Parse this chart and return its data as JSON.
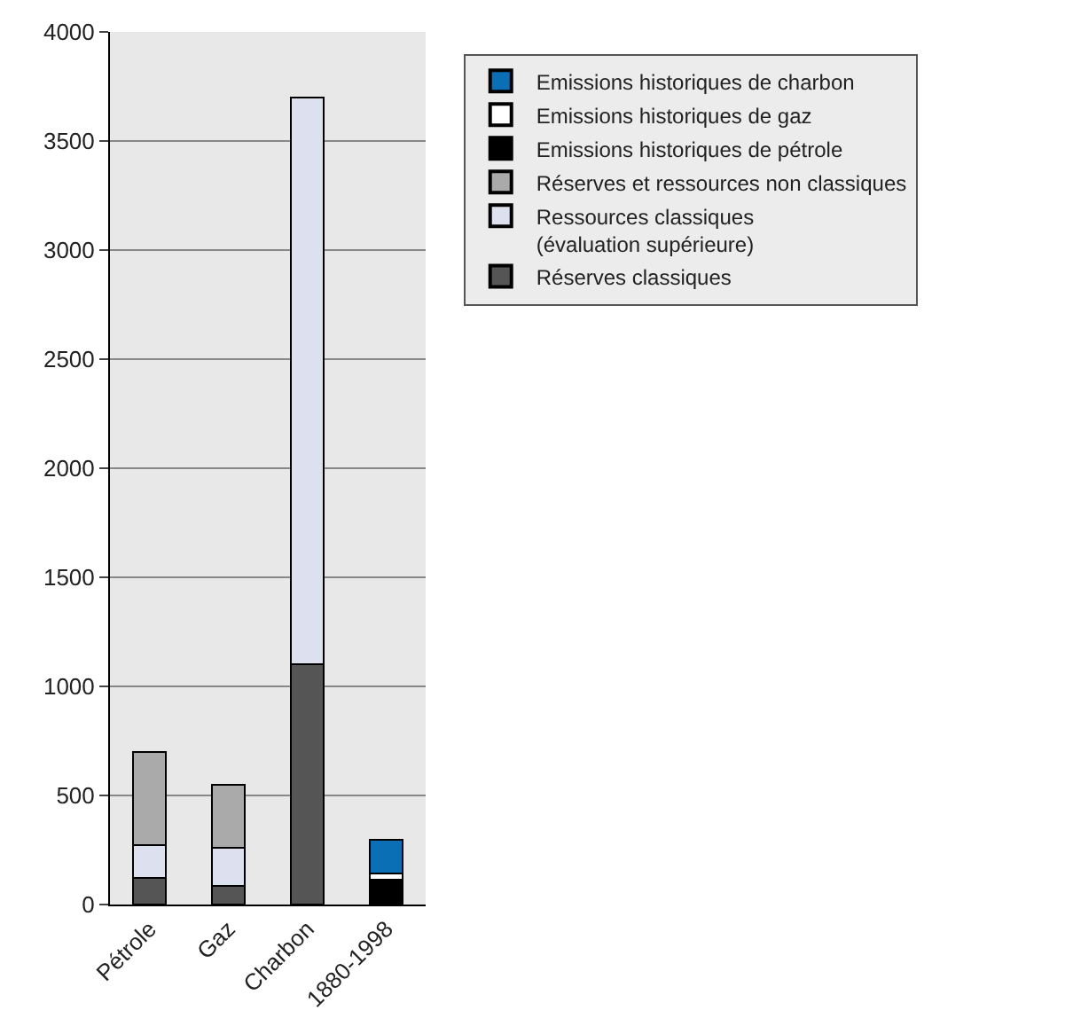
{
  "chart_data": {
    "type": "bar",
    "stacked": true,
    "categories": [
      "Pétrole",
      "Gaz",
      "Charbon",
      "1880-1998"
    ],
    "series": [
      {
        "name": "Réserves classiques",
        "color": "#555555",
        "values": [
          120,
          84,
          1100,
          null
        ]
      },
      {
        "name": "Ressources classiques\n(évaluation supérieure)",
        "color": "#dde0ef",
        "values": [
          153,
          177,
          2600,
          null
        ]
      },
      {
        "name": "Réserves et ressources non classiques",
        "color": "#aaaaaa",
        "values": [
          427,
          286,
          null,
          null
        ]
      },
      {
        "name": "Emissions historiques de pétrole",
        "color": "#000000",
        "values": [
          null,
          null,
          null,
          114
        ]
      },
      {
        "name": "Emissions historiques de gaz",
        "color": "#ffffff",
        "values": [
          null,
          null,
          null,
          30
        ]
      },
      {
        "name": "Emissions historiques de charbon",
        "color": "#0a6fb5",
        "values": [
          null,
          null,
          null,
          153
        ]
      }
    ],
    "ylim": [
      0,
      4000
    ],
    "yticks": [
      0,
      500,
      1000,
      1500,
      2000,
      2500,
      3000,
      3500,
      4000
    ],
    "grid": "y",
    "legend": "top right"
  }
}
